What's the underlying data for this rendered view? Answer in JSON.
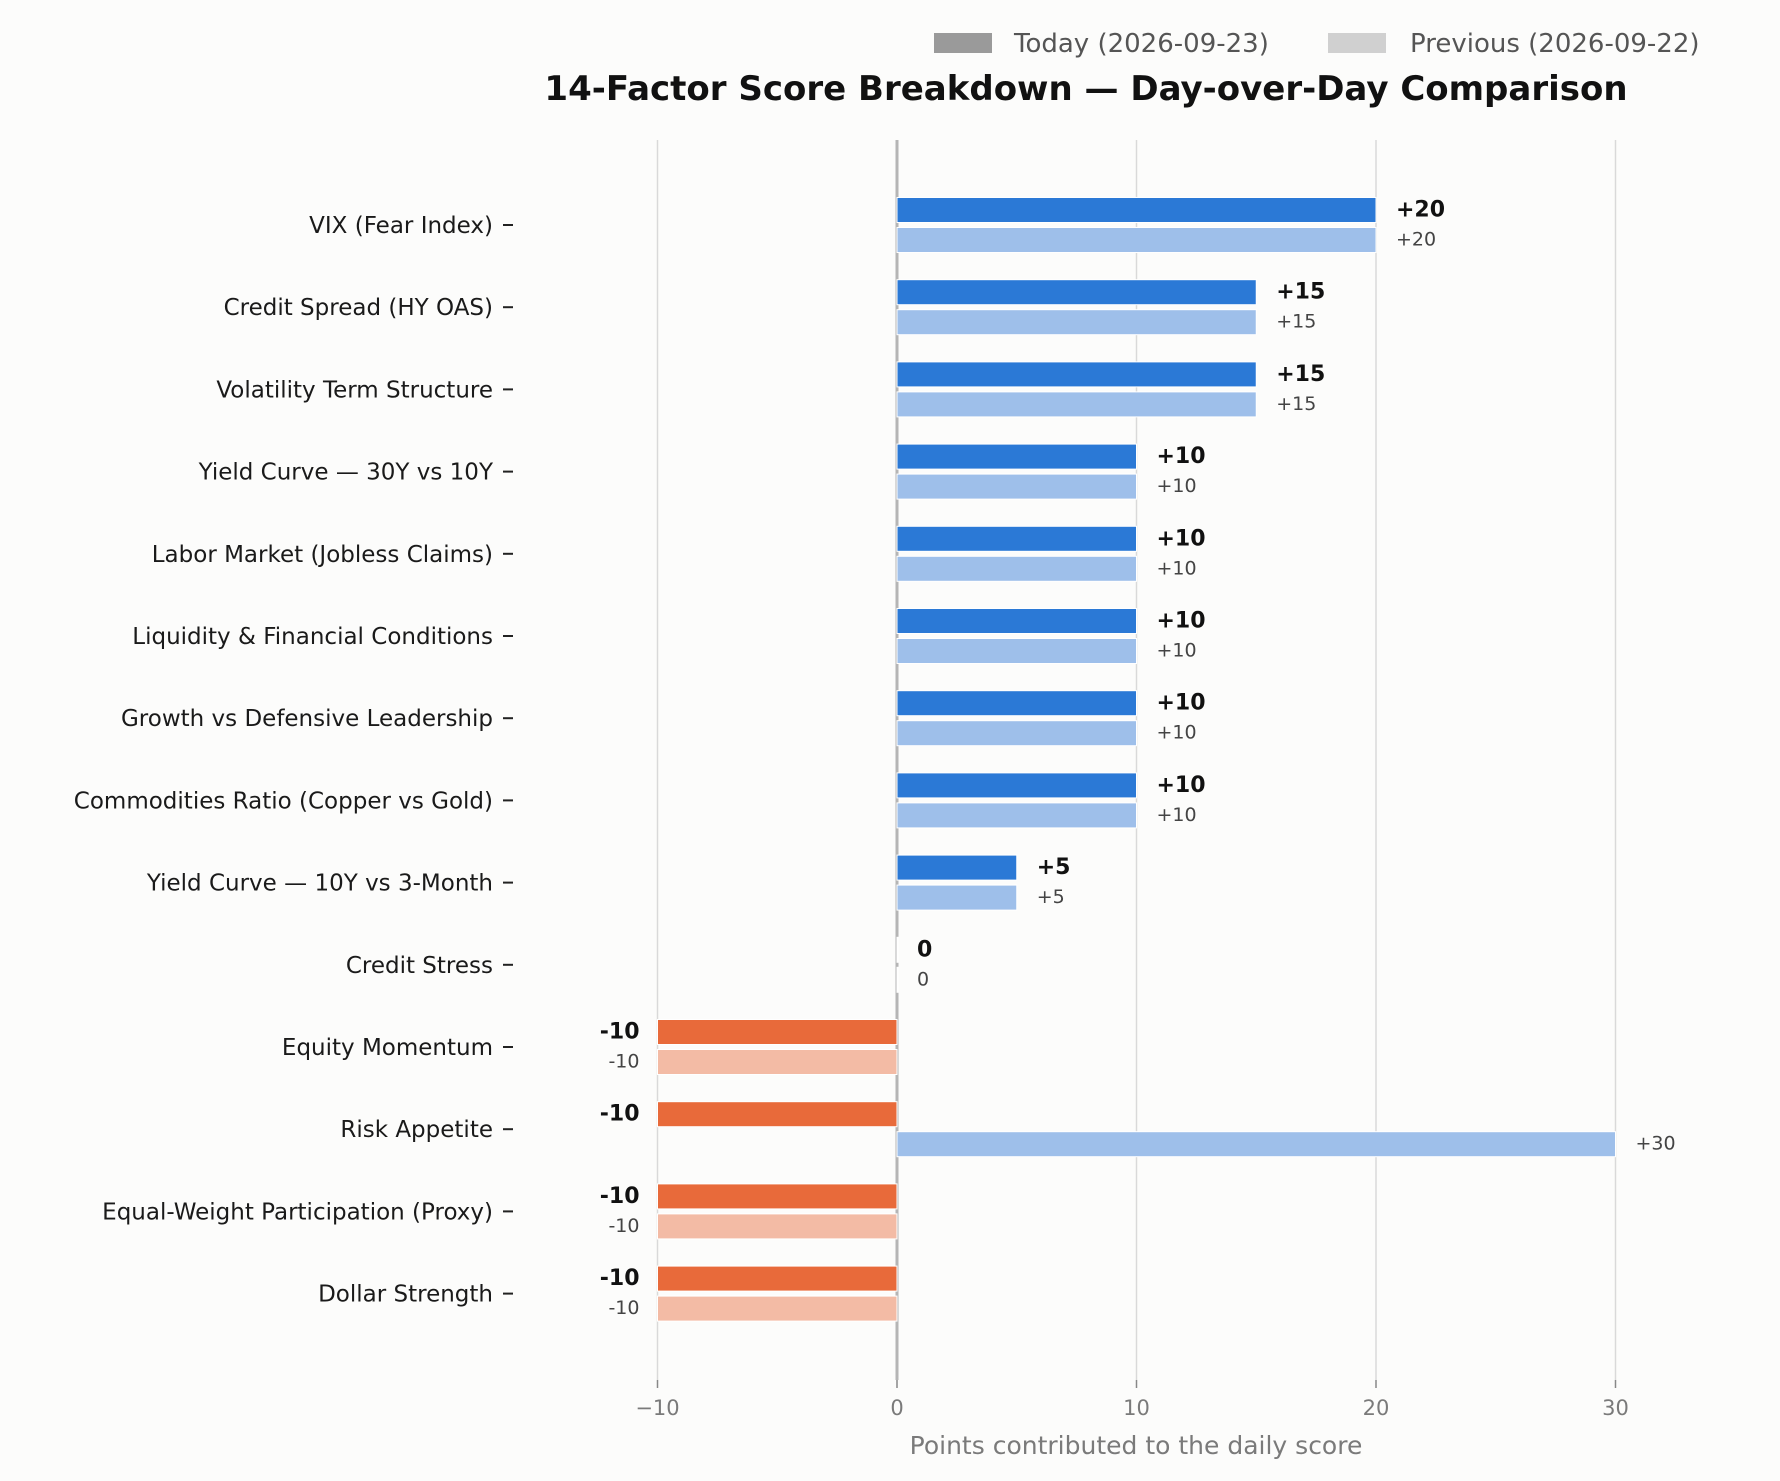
{
  "chart_data": {
    "type": "bar",
    "orientation": "horizontal",
    "title": "14-Factor Score Breakdown — Day-over-Day Comparison",
    "xlabel": "Points contributed to the daily score",
    "xlim": [
      -10,
      30
    ],
    "xticks": [
      -10,
      0,
      10,
      20,
      30
    ],
    "xtick_labels": [
      "−10",
      "0",
      "10",
      "20",
      "30"
    ],
    "grid": "vertical",
    "legend": {
      "placement": "top-right",
      "entries": [
        "Today (2026-09-23)",
        "Previous (2026-09-22)"
      ]
    },
    "categories": [
      "VIX (Fear Index)",
      "Credit Spread (HY OAS)",
      "Volatility Term Structure",
      "Yield Curve — 30Y vs 10Y",
      "Labor Market (Jobless Claims)",
      "Liquidity & Financial Conditions",
      "Growth vs Defensive Leadership",
      "Commodities Ratio (Copper vs Gold)",
      "Yield Curve — 10Y vs 3-Month",
      "Credit Stress",
      "Equity Momentum",
      "Risk Appetite",
      "Equal-Weight Participation (Proxy)",
      "Dollar Strength"
    ],
    "series": [
      {
        "name": "Today (2026-09-23)",
        "values": [
          20,
          15,
          15,
          10,
          10,
          10,
          10,
          10,
          5,
          0,
          -10,
          -10,
          -10,
          -10
        ],
        "labels": [
          "+20",
          "+15",
          "+15",
          "+10",
          "+10",
          "+10",
          "+10",
          "+10",
          "+5",
          "0",
          "-10",
          "-10",
          "-10",
          "-10"
        ]
      },
      {
        "name": "Previous (2026-09-22)",
        "values": [
          20,
          15,
          15,
          10,
          10,
          10,
          10,
          10,
          5,
          0,
          -10,
          30,
          -10,
          -10
        ],
        "labels": [
          "+20",
          "+15",
          "+15",
          "+10",
          "+10",
          "+10",
          "+10",
          "+10",
          "+5",
          "0",
          "-10",
          "+30",
          "-10",
          "-10"
        ]
      }
    ],
    "colors": {
      "positive_today": "#2b79d6",
      "positive_previous": "#9ebfea",
      "negative_today": "#e86a3a",
      "negative_previous": "#f3bba5",
      "legend_today": "#9a9a9a",
      "legend_previous": "#d0d0d0",
      "grid": "#d9d9d9",
      "zero_line": "#b5b5b5"
    }
  }
}
